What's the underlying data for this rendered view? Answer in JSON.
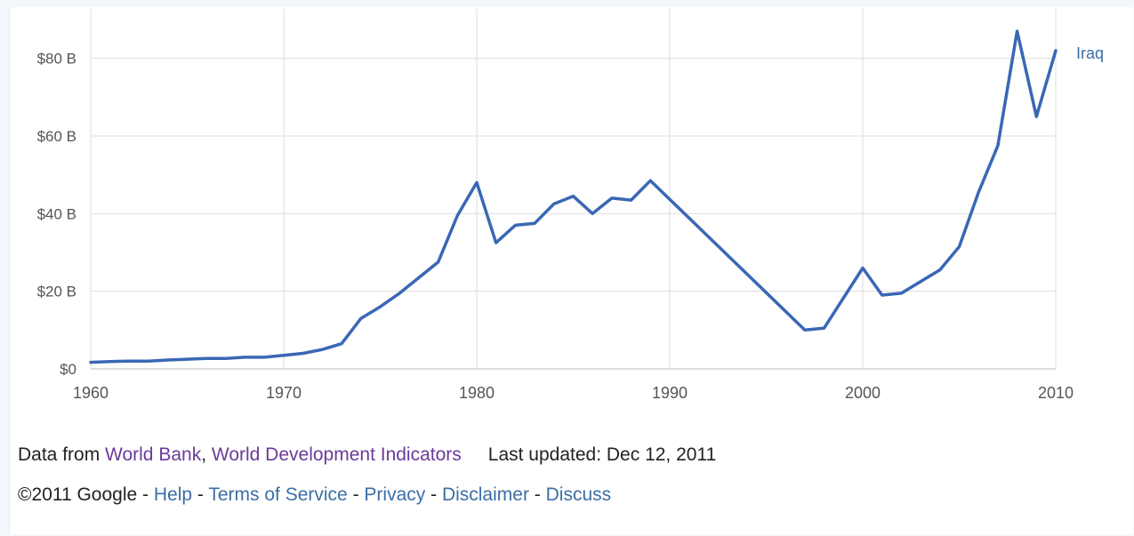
{
  "chart_data": {
    "type": "line",
    "x": [
      1960,
      1961,
      1962,
      1963,
      1964,
      1965,
      1966,
      1967,
      1968,
      1969,
      1970,
      1971,
      1972,
      1973,
      1974,
      1975,
      1976,
      1977,
      1978,
      1979,
      1980,
      1981,
      1982,
      1983,
      1984,
      1985,
      1986,
      1987,
      1988,
      1989,
      1997,
      1998,
      2000,
      2001,
      2002,
      2004,
      2005,
      2006,
      2007,
      2008,
      2009,
      2010
    ],
    "series": [
      {
        "name": "Iraq",
        "color": "#3a67b5",
        "values": [
          1.7,
          1.9,
          2.0,
          2.0,
          2.3,
          2.5,
          2.7,
          2.7,
          3.0,
          3.0,
          3.5,
          4.0,
          5.0,
          6.5,
          13.0,
          16.0,
          19.5,
          23.5,
          27.5,
          39.5,
          48.0,
          32.5,
          37.0,
          37.5,
          42.5,
          44.5,
          40.0,
          44.0,
          43.5,
          48.5,
          10.0,
          10.5,
          26.0,
          19.0,
          19.5,
          25.5,
          31.5,
          45.5,
          57.5,
          87.0,
          65.0,
          82.0
        ]
      }
    ],
    "xticks": [
      "1960",
      "1970",
      "1980",
      "1990",
      "2000",
      "2010"
    ],
    "yticks": [
      "$0",
      "$20 B",
      "$40 B",
      "$60 B",
      "$80 B"
    ],
    "xlim": [
      1960,
      2010
    ],
    "ylim": [
      0,
      90
    ],
    "ytick_values": [
      0,
      20,
      40,
      60,
      80
    ],
    "grid": true,
    "legend": "right, next to line end"
  },
  "footer": {
    "data_prefix": "Data from ",
    "source1": "World Bank",
    "sep1": ", ",
    "source2": "World Development Indicators",
    "updated": "Last updated: Dec 12, 2011",
    "copyright": "©2011 Google",
    "dash": " - ",
    "links": [
      "Help",
      "Terms of Service",
      "Privacy",
      "Disclaimer",
      "Discuss"
    ]
  }
}
